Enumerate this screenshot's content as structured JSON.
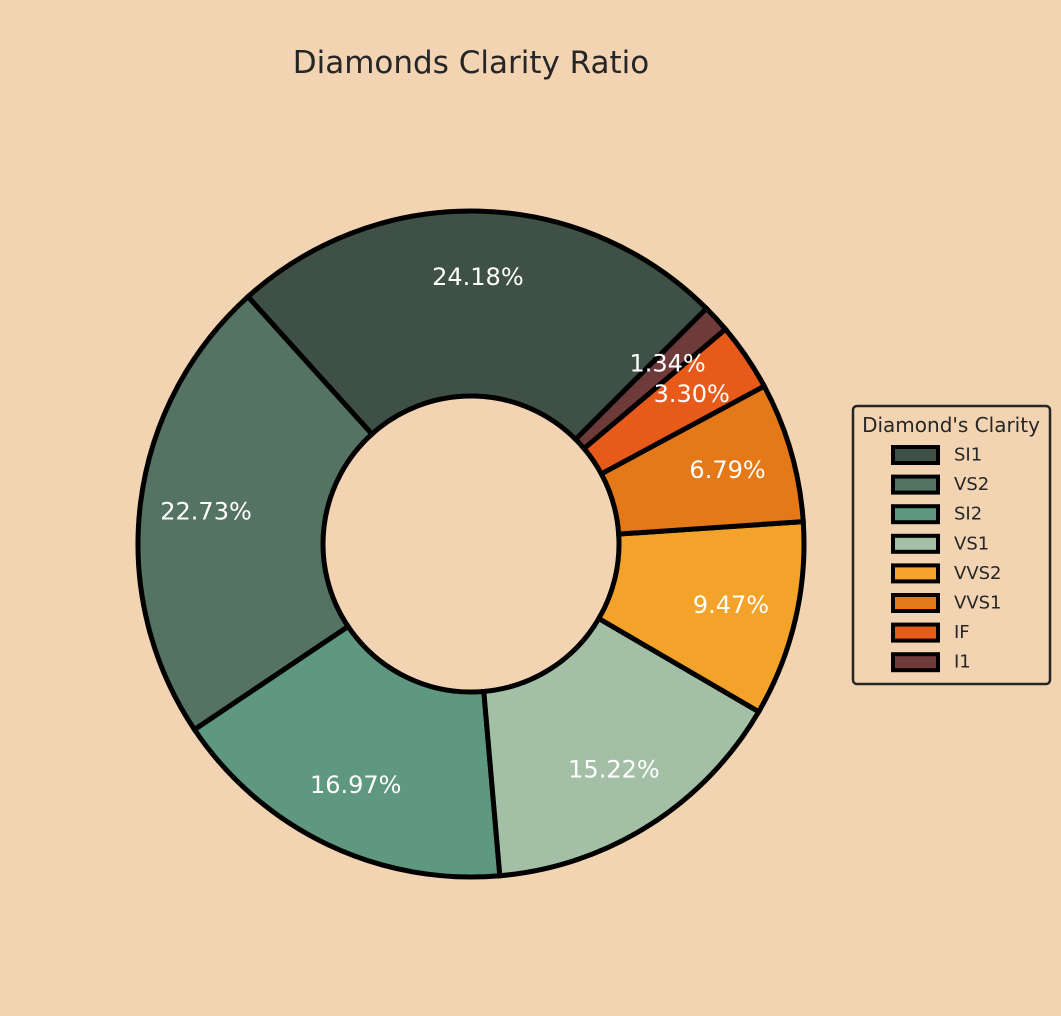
{
  "chart_data": {
    "type": "pie",
    "title": "Diamonds Clarity Ratio",
    "categories": [
      "SI1",
      "VS2",
      "SI2",
      "VS1",
      "VVS2",
      "VVS1",
      "IF",
      "I1"
    ],
    "values": [
      24.18,
      22.73,
      16.97,
      15.22,
      9.47,
      6.79,
      3.3,
      1.34
    ],
    "value_labels": [
      "24.18%",
      "22.73%",
      "16.97%",
      "15.22%",
      "9.47%",
      "6.79%",
      "3.30%",
      "1.34%"
    ],
    "colors": [
      "#3F5046",
      "#547362",
      "#5E9880",
      "#A3C0A6",
      "#F4A32A",
      "#E57817",
      "#E85A1A",
      "#6E3A3A"
    ],
    "donut": true,
    "start_angle_deg": 45,
    "direction": "counterclockwise",
    "legend": {
      "title": "Diamond's Clarity",
      "placement": "right"
    }
  }
}
